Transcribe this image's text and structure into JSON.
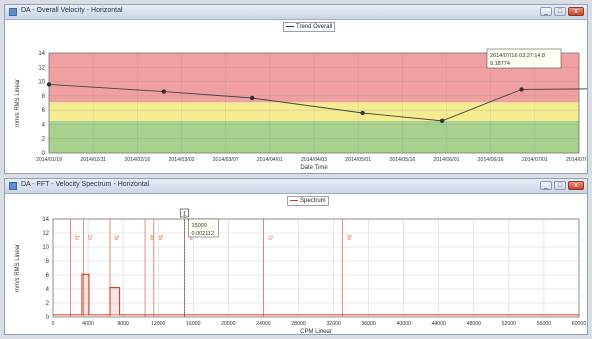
{
  "window_top": {
    "title": "DA - Overall Velocity - Horizontal",
    "legend": "Trend Overall",
    "buttons": {
      "minimize": "_",
      "maximize": "□",
      "close": "x"
    },
    "chart_data": {
      "type": "line",
      "ylabel": "mm/s RMS Linear",
      "xlabel": "Date Time",
      "ylim": [
        0,
        14
      ],
      "yticks": [
        "0",
        "2",
        "4",
        "6",
        "8",
        "10",
        "12",
        "14"
      ],
      "categories": [
        "2014/01/19",
        "2014/02/11",
        "2014/02/16",
        "2014/03/02",
        "2014/03/07",
        "2014/04/01",
        "2014/04/03",
        "2014/05/01",
        "2014/05/16",
        "2014/06/01",
        "2014/06/16",
        "2014/07/01",
        "2014/07/16"
      ],
      "series": [
        {
          "name": "Trend Overall",
          "points": [
            [
              0,
              9.6
            ],
            [
              2.6,
              8.6
            ],
            [
              4.6,
              7.7
            ],
            [
              7.1,
              5.6
            ],
            [
              8.9,
              4.5
            ],
            [
              10.7,
              8.9
            ],
            [
              12.6,
              9.0
            ]
          ]
        }
      ],
      "bands": [
        {
          "from": 0,
          "to": 4.5,
          "color": "#a9d18e"
        },
        {
          "from": 4.5,
          "to": 7.1,
          "color": "#f5ec90"
        },
        {
          "from": 7.1,
          "to": 14,
          "color": "#f0a0a0"
        }
      ],
      "cursor_tooltip": [
        "2014/07/16 03:27:14.8",
        "9.18774"
      ],
      "cursor_label": "1"
    }
  },
  "window_bottom": {
    "title": "DA - FFT - Velocity Spectrum - Horizontal",
    "legend": "Spectrum",
    "buttons": {
      "minimize": "_",
      "maximize": "□",
      "close": "x"
    },
    "chart_data": {
      "type": "bar",
      "ylabel": "mm/s RMS Linear",
      "xlabel": "CPM Linear",
      "ylim": [
        0,
        14
      ],
      "yticks": [
        "0",
        "2",
        "4",
        "6",
        "8",
        "10",
        "12",
        "14"
      ],
      "xlim": [
        0,
        60000
      ],
      "xticks": [
        "0",
        "4000",
        "8000",
        "12000",
        "16000",
        "20000",
        "24000",
        "28000",
        "32000",
        "36000",
        "40000",
        "44000",
        "48000",
        "52000",
        "56000",
        "60000"
      ],
      "peaks": [
        {
          "from": 3300,
          "to": 4100,
          "value": 6.1
        },
        {
          "from": 6500,
          "to": 7600,
          "value": 4.2
        }
      ],
      "markers": [
        {
          "x": 2000,
          "label": "1x"
        },
        {
          "x": 3500,
          "label": "2x"
        },
        {
          "x": 6500,
          "label": "3x"
        },
        {
          "x": 10500,
          "label": "4x"
        },
        {
          "x": 11500,
          "label": "5x"
        },
        {
          "x": 15000,
          "label": "6x"
        },
        {
          "x": 24000,
          "label": "7x"
        },
        {
          "x": 33000,
          "label": "8x"
        }
      ],
      "cursor_tooltip": [
        "15000",
        "0.002112"
      ],
      "cursor_label": "1"
    }
  },
  "colors": {
    "trend_line": "#444444",
    "spectrum": "#e03020",
    "marker": "#e06030",
    "grid": "#d0d0d0"
  }
}
